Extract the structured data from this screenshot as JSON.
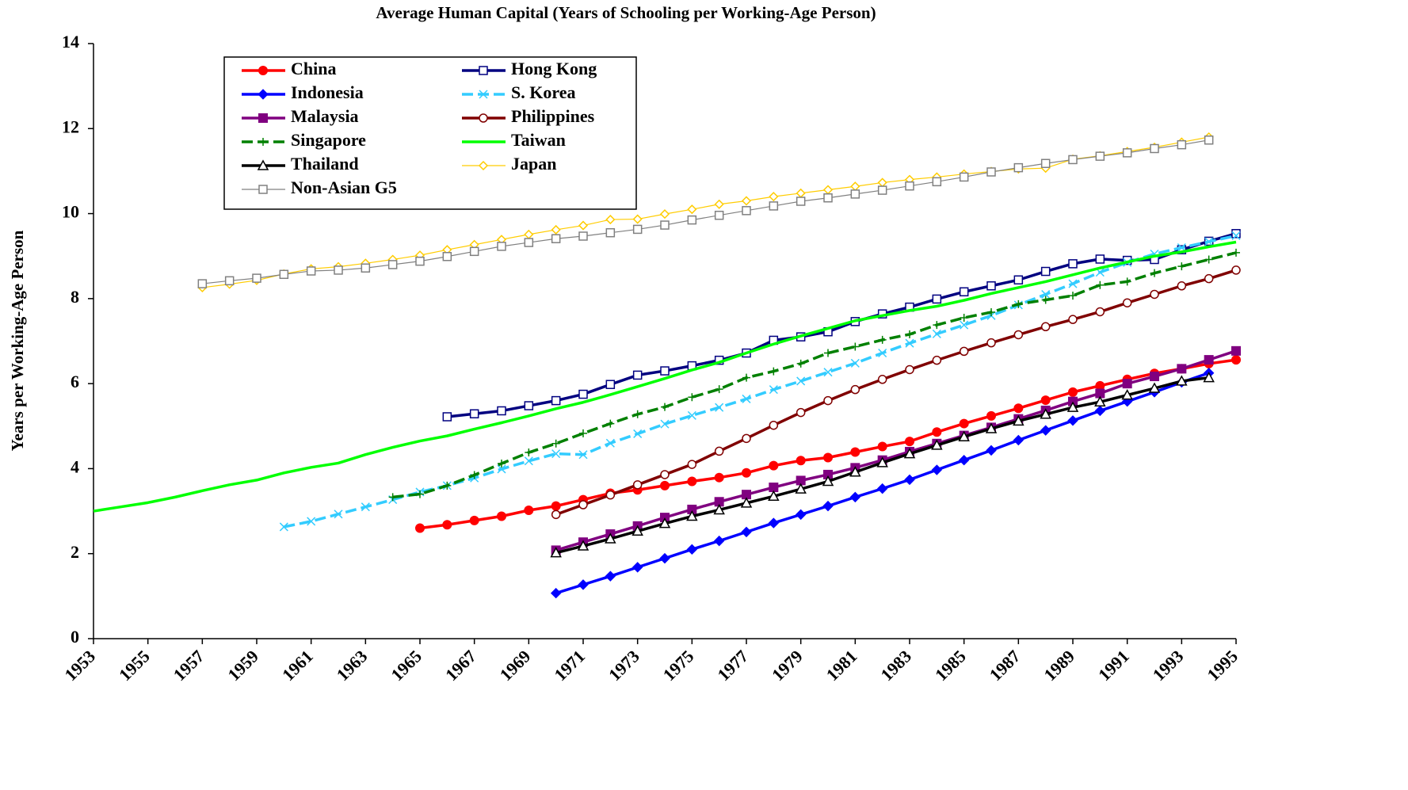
{
  "chart_data": {
    "type": "line",
    "title": "Average Human Capital (Years of Schooling per Working-Age Person)",
    "y_label": "Years per Working-Age Person",
    "xlim": [
      1953,
      1995
    ],
    "xticks": [
      1953,
      1955,
      1957,
      1959,
      1961,
      1963,
      1965,
      1967,
      1969,
      1971,
      1973,
      1975,
      1977,
      1979,
      1981,
      1983,
      1985,
      1987,
      1989,
      1991,
      1993,
      1995
    ],
    "ylim": [
      0,
      14
    ],
    "yticks": [
      0,
      2,
      4,
      6,
      8,
      10,
      12,
      14
    ],
    "legend": "top-left",
    "series": [
      {
        "name": "China",
        "color": "#ff0000",
        "marker": "circle",
        "dash": false,
        "style": "thick",
        "x": [
          1965,
          1966,
          1967,
          1968,
          1969,
          1970,
          1971,
          1972,
          1973,
          1974,
          1975,
          1976,
          1977,
          1978,
          1979,
          1980,
          1981,
          1982,
          1983,
          1984,
          1985,
          1986,
          1987,
          1988,
          1989,
          1990,
          1991,
          1992,
          1993,
          1994,
          1995
        ],
        "values": [
          2.6,
          2.68,
          2.78,
          2.88,
          3.02,
          3.12,
          3.27,
          3.42,
          3.5,
          3.6,
          3.7,
          3.79,
          3.9,
          4.07,
          4.19,
          4.26,
          4.39,
          4.52,
          4.64,
          4.86,
          5.06,
          5.24,
          5.42,
          5.61,
          5.8,
          5.95,
          6.1,
          6.24,
          6.35,
          6.47,
          6.56
        ]
      },
      {
        "name": "Hong Kong",
        "color": "#000080",
        "marker": "open-square",
        "dash": false,
        "style": "thick",
        "x": [
          1966,
          1967,
          1968,
          1969,
          1970,
          1971,
          1972,
          1973,
          1974,
          1975,
          1976,
          1977,
          1978,
          1979,
          1980,
          1981,
          1982,
          1983,
          1984,
          1985,
          1986,
          1987,
          1988,
          1989,
          1990,
          1991,
          1992,
          1993,
          1994,
          1995
        ],
        "values": [
          5.22,
          5.29,
          5.36,
          5.48,
          5.6,
          5.75,
          5.98,
          6.2,
          6.3,
          6.42,
          6.55,
          6.72,
          7.02,
          7.1,
          7.22,
          7.46,
          7.64,
          7.8,
          7.99,
          8.16,
          8.3,
          8.44,
          8.64,
          8.82,
          8.93,
          8.9,
          8.92,
          9.15,
          9.35,
          9.53
        ]
      },
      {
        "name": "Indonesia",
        "color": "#0000ff",
        "marker": "diamond",
        "dash": false,
        "style": "thick",
        "x": [
          1970,
          1971,
          1972,
          1973,
          1974,
          1975,
          1976,
          1977,
          1978,
          1979,
          1980,
          1981,
          1982,
          1983,
          1984,
          1985,
          1986,
          1987,
          1988,
          1989,
          1990,
          1991,
          1992,
          1993,
          1994
        ],
        "values": [
          1.07,
          1.27,
          1.47,
          1.68,
          1.89,
          2.1,
          2.3,
          2.51,
          2.72,
          2.92,
          3.12,
          3.33,
          3.53,
          3.74,
          3.97,
          4.2,
          4.43,
          4.67,
          4.9,
          5.13,
          5.36,
          5.58,
          5.8,
          6.03,
          6.25
        ]
      },
      {
        "name": "S. Korea",
        "color": "#33ccff",
        "marker": "x",
        "dash": true,
        "style": "thick",
        "x": [
          1960,
          1961,
          1962,
          1963,
          1964,
          1965,
          1966,
          1967,
          1968,
          1969,
          1970,
          1971,
          1972,
          1973,
          1974,
          1975,
          1976,
          1977,
          1978,
          1979,
          1980,
          1981,
          1982,
          1983,
          1984,
          1985,
          1986,
          1987,
          1988,
          1989,
          1990,
          1991,
          1992,
          1993,
          1994,
          1995
        ],
        "values": [
          2.63,
          2.76,
          2.93,
          3.1,
          3.27,
          3.45,
          3.6,
          3.78,
          3.99,
          4.18,
          4.35,
          4.33,
          4.6,
          4.82,
          5.05,
          5.25,
          5.44,
          5.64,
          5.86,
          6.06,
          6.27,
          6.48,
          6.72,
          6.95,
          7.17,
          7.38,
          7.6,
          7.85,
          8.1,
          8.35,
          8.62,
          8.85,
          9.05,
          9.2,
          9.34,
          9.48
        ]
      },
      {
        "name": "Malaysia",
        "color": "#800080",
        "marker": "square",
        "dash": false,
        "style": "thick",
        "x": [
          1970,
          1971,
          1972,
          1973,
          1974,
          1975,
          1976,
          1977,
          1978,
          1979,
          1980,
          1981,
          1982,
          1983,
          1984,
          1985,
          1986,
          1987,
          1988,
          1989,
          1990,
          1991,
          1992,
          1993,
          1994,
          1995
        ],
        "values": [
          2.08,
          2.27,
          2.46,
          2.65,
          2.85,
          3.04,
          3.22,
          3.39,
          3.56,
          3.72,
          3.86,
          4.02,
          4.2,
          4.4,
          4.59,
          4.78,
          4.97,
          5.17,
          5.37,
          5.58,
          5.77,
          6.0,
          6.17,
          6.35,
          6.56,
          6.77
        ]
      },
      {
        "name": "Philippines",
        "color": "#800000",
        "marker": "open-circle",
        "dash": false,
        "style": "thick",
        "x": [
          1970,
          1971,
          1972,
          1973,
          1974,
          1975,
          1976,
          1977,
          1978,
          1979,
          1980,
          1981,
          1982,
          1983,
          1984,
          1985,
          1986,
          1987,
          1988,
          1989,
          1990,
          1991,
          1992,
          1993,
          1994,
          1995
        ],
        "values": [
          2.92,
          3.15,
          3.38,
          3.62,
          3.86,
          4.1,
          4.41,
          4.71,
          5.02,
          5.32,
          5.6,
          5.86,
          6.1,
          6.33,
          6.55,
          6.76,
          6.96,
          7.15,
          7.34,
          7.51,
          7.69,
          7.9,
          8.1,
          8.3,
          8.47,
          8.67
        ]
      },
      {
        "name": "Singapore",
        "color": "#008000",
        "marker": "plus",
        "dash": true,
        "style": "thick",
        "x": [
          1964,
          1965,
          1966,
          1967,
          1968,
          1969,
          1970,
          1971,
          1972,
          1973,
          1974,
          1975,
          1976,
          1977,
          1978,
          1979,
          1980,
          1981,
          1982,
          1983,
          1984,
          1985,
          1986,
          1987,
          1988,
          1989,
          1990,
          1991,
          1992,
          1993,
          1994,
          1995
        ],
        "values": [
          3.33,
          3.4,
          3.6,
          3.85,
          4.12,
          4.38,
          4.59,
          4.83,
          5.06,
          5.28,
          5.45,
          5.68,
          5.87,
          6.14,
          6.29,
          6.47,
          6.72,
          6.87,
          7.03,
          7.16,
          7.38,
          7.55,
          7.68,
          7.87,
          7.97,
          8.07,
          8.32,
          8.4,
          8.6,
          8.76,
          8.92,
          9.08
        ]
      },
      {
        "name": "Taiwan",
        "color": "#00ff00",
        "marker": "none",
        "dash": false,
        "style": "thick",
        "x": [
          1953,
          1954,
          1955,
          1956,
          1957,
          1958,
          1959,
          1960,
          1961,
          1962,
          1963,
          1964,
          1965,
          1966,
          1967,
          1968,
          1969,
          1970,
          1971,
          1972,
          1973,
          1974,
          1975,
          1976,
          1977,
          1978,
          1979,
          1980,
          1981,
          1982,
          1983,
          1984,
          1985,
          1986,
          1987,
          1988,
          1989,
          1990,
          1991,
          1992,
          1993,
          1994,
          1995
        ],
        "values": [
          3.0,
          3.1,
          3.2,
          3.33,
          3.48,
          3.62,
          3.73,
          3.9,
          4.03,
          4.13,
          4.33,
          4.5,
          4.65,
          4.77,
          4.93,
          5.08,
          5.24,
          5.41,
          5.56,
          5.74,
          5.93,
          6.12,
          6.32,
          6.5,
          6.72,
          6.93,
          7.12,
          7.3,
          7.48,
          7.6,
          7.72,
          7.82,
          7.96,
          8.12,
          8.26,
          8.4,
          8.56,
          8.72,
          8.86,
          9.0,
          9.1,
          9.22,
          9.33
        ]
      },
      {
        "name": "Thailand",
        "color": "#000000",
        "marker": "open-triangle",
        "dash": false,
        "style": "thick",
        "x": [
          1970,
          1971,
          1972,
          1973,
          1974,
          1975,
          1976,
          1977,
          1978,
          1979,
          1980,
          1981,
          1982,
          1983,
          1984,
          1985,
          1986,
          1987,
          1988,
          1989,
          1990,
          1991,
          1992,
          1993,
          1994
        ],
        "values": [
          2.02,
          2.18,
          2.35,
          2.53,
          2.71,
          2.88,
          3.03,
          3.19,
          3.35,
          3.52,
          3.7,
          3.92,
          4.14,
          4.35,
          4.55,
          4.75,
          4.94,
          5.12,
          5.28,
          5.44,
          5.57,
          5.73,
          5.89,
          6.06,
          6.14
        ]
      },
      {
        "name": "Japan",
        "color": "#ffcc00",
        "marker": "open-diamond",
        "dash": false,
        "style": "thin",
        "x": [
          1957,
          1958,
          1959,
          1960,
          1961,
          1962,
          1963,
          1964,
          1965,
          1966,
          1967,
          1968,
          1969,
          1970,
          1971,
          1972,
          1973,
          1974,
          1975,
          1976,
          1977,
          1978,
          1979,
          1980,
          1981,
          1982,
          1983,
          1984,
          1985,
          1986,
          1987,
          1988,
          1989,
          1990,
          1991,
          1992,
          1993,
          1994
        ],
        "values": [
          8.26,
          8.34,
          8.43,
          8.58,
          8.7,
          8.75,
          8.83,
          8.92,
          9.02,
          9.15,
          9.27,
          9.39,
          9.51,
          9.62,
          9.72,
          9.86,
          9.87,
          9.99,
          10.1,
          10.22,
          10.3,
          10.4,
          10.48,
          10.56,
          10.64,
          10.73,
          10.8,
          10.86,
          10.93,
          10.99,
          11.05,
          11.07,
          11.28,
          11.36,
          11.46,
          11.56,
          11.68,
          11.8
        ]
      },
      {
        "name": "Non-Asian G5",
        "color": "#808080",
        "marker": "open-square",
        "dash": false,
        "style": "thin",
        "x": [
          1957,
          1958,
          1959,
          1960,
          1961,
          1962,
          1963,
          1964,
          1965,
          1966,
          1967,
          1968,
          1969,
          1970,
          1971,
          1972,
          1973,
          1974,
          1975,
          1976,
          1977,
          1978,
          1979,
          1980,
          1981,
          1982,
          1983,
          1984,
          1985,
          1986,
          1987,
          1988,
          1989,
          1990,
          1991,
          1992,
          1993,
          1994
        ],
        "values": [
          8.35,
          8.42,
          8.48,
          8.57,
          8.65,
          8.67,
          8.72,
          8.8,
          8.88,
          8.99,
          9.11,
          9.23,
          9.32,
          9.41,
          9.47,
          9.55,
          9.63,
          9.73,
          9.85,
          9.96,
          10.07,
          10.18,
          10.29,
          10.37,
          10.46,
          10.55,
          10.65,
          10.75,
          10.86,
          10.98,
          11.08,
          11.18,
          11.27,
          11.35,
          11.43,
          11.53,
          11.62,
          11.73
        ]
      }
    ]
  }
}
